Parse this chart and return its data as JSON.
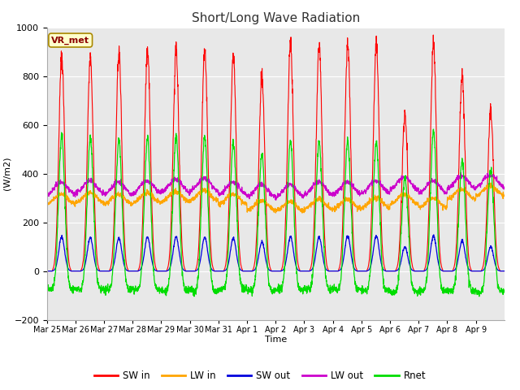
{
  "title": "Short/Long Wave Radiation",
  "ylabel": "(W/m2)",
  "xlabel": "Time",
  "ylim": [
    -200,
    1000
  ],
  "plot_bg_color": "#e8e8e8",
  "fig_bg_color": "#ffffff",
  "station_label": "VR_met",
  "x_tick_labels": [
    "Mar 25",
    "Mar 26",
    "Mar 27",
    "Mar 28",
    "Mar 29",
    "Mar 30",
    "Mar 31",
    "Apr 1",
    "Apr 2",
    "Apr 3",
    "Apr 4",
    "Apr 5",
    "Apr 6",
    "Apr 7",
    "Apr 8",
    "Apr 9"
  ],
  "sw_in_color": "#ff0000",
  "lw_in_color": "#ffa500",
  "sw_out_color": "#0000dd",
  "lw_out_color": "#cc00cc",
  "rnet_color": "#00dd00",
  "n_days": 16,
  "points_per_day": 144,
  "sw_in_peaks": [
    880,
    875,
    895,
    905,
    905,
    905,
    880,
    800,
    940,
    925,
    930,
    920,
    640,
    940,
    810,
    660
  ],
  "lw_in_base": [
    295,
    300,
    295,
    300,
    305,
    310,
    295,
    270,
    265,
    275,
    275,
    280,
    295,
    280,
    315,
    330
  ],
  "sw_out_peaks": [
    140,
    138,
    135,
    140,
    140,
    140,
    135,
    120,
    140,
    140,
    145,
    145,
    100,
    145,
    125,
    100
  ],
  "lw_out_base": [
    340,
    345,
    340,
    345,
    350,
    355,
    340,
    330,
    330,
    340,
    340,
    345,
    360,
    345,
    365,
    370
  ],
  "rnet_peaks": [
    555,
    545,
    540,
    545,
    550,
    550,
    530,
    480,
    535,
    530,
    535,
    530,
    385,
    575,
    460,
    415
  ],
  "rnet_night": [
    -75,
    -75,
    -75,
    -75,
    -80,
    -80,
    -75,
    -80,
    -75,
    -75,
    -75,
    -80,
    -85,
    -80,
    -80,
    -85
  ]
}
